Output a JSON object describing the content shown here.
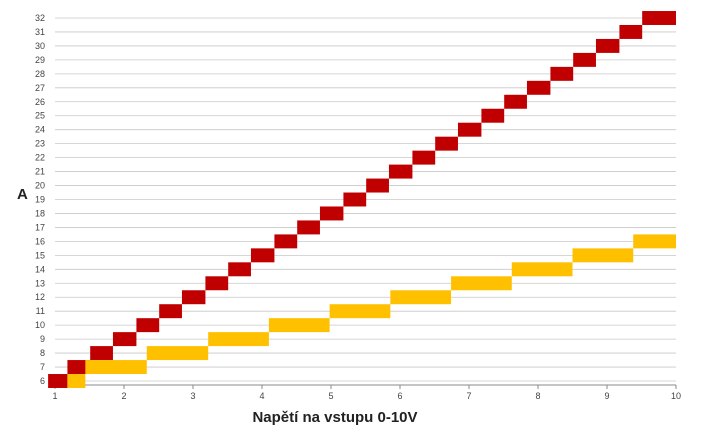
{
  "chart_data": {
    "type": "bar",
    "xlabel": "Napětí na vstupu 0-10V",
    "ylabel": "A",
    "xlim": [
      1,
      10
    ],
    "ylim": [
      6,
      32
    ],
    "xticks": [
      1,
      2,
      3,
      4,
      5,
      6,
      7,
      8,
      9,
      10
    ],
    "yticks": [
      6,
      7,
      8,
      9,
      10,
      11,
      12,
      13,
      14,
      15,
      16,
      17,
      18,
      19,
      20,
      21,
      22,
      23,
      24,
      25,
      26,
      27,
      28,
      29,
      30,
      31,
      32
    ],
    "grid": "horizontal",
    "legend": "none",
    "series": [
      {
        "color": "#c00000",
        "segments": [
          {
            "x_start": 0.9,
            "x_end": 1.18,
            "value": 6
          },
          {
            "x_start": 1.18,
            "x_end": 1.51,
            "value": 7
          },
          {
            "x_start": 1.51,
            "x_end": 1.84,
            "value": 8
          },
          {
            "x_start": 1.84,
            "x_end": 2.18,
            "value": 9
          },
          {
            "x_start": 2.18,
            "x_end": 2.51,
            "value": 10
          },
          {
            "x_start": 2.51,
            "x_end": 2.84,
            "value": 11
          },
          {
            "x_start": 2.84,
            "x_end": 3.18,
            "value": 12
          },
          {
            "x_start": 3.18,
            "x_end": 3.51,
            "value": 13
          },
          {
            "x_start": 3.51,
            "x_end": 3.84,
            "value": 14
          },
          {
            "x_start": 3.84,
            "x_end": 4.18,
            "value": 15
          },
          {
            "x_start": 4.18,
            "x_end": 4.51,
            "value": 16
          },
          {
            "x_start": 4.51,
            "x_end": 4.84,
            "value": 17
          },
          {
            "x_start": 4.84,
            "x_end": 5.18,
            "value": 18
          },
          {
            "x_start": 5.18,
            "x_end": 5.51,
            "value": 19
          },
          {
            "x_start": 5.51,
            "x_end": 5.84,
            "value": 20
          },
          {
            "x_start": 5.84,
            "x_end": 6.18,
            "value": 21
          },
          {
            "x_start": 6.18,
            "x_end": 6.51,
            "value": 22
          },
          {
            "x_start": 6.51,
            "x_end": 6.84,
            "value": 23
          },
          {
            "x_start": 6.84,
            "x_end": 7.18,
            "value": 24
          },
          {
            "x_start": 7.18,
            "x_end": 7.51,
            "value": 25
          },
          {
            "x_start": 7.51,
            "x_end": 7.84,
            "value": 26
          },
          {
            "x_start": 7.84,
            "x_end": 8.18,
            "value": 27
          },
          {
            "x_start": 8.18,
            "x_end": 8.51,
            "value": 28
          },
          {
            "x_start": 8.51,
            "x_end": 8.84,
            "value": 29
          },
          {
            "x_start": 8.84,
            "x_end": 9.18,
            "value": 30
          },
          {
            "x_start": 9.18,
            "x_end": 9.51,
            "value": 31
          },
          {
            "x_start": 9.51,
            "x_end": 10.0,
            "value": 32
          }
        ]
      },
      {
        "color": "#ffc000",
        "segments": [
          {
            "x_start": 1.18,
            "x_end": 1.44,
            "value": 6
          },
          {
            "x_start": 1.44,
            "x_end": 2.33,
            "value": 7
          },
          {
            "x_start": 2.33,
            "x_end": 3.22,
            "value": 8
          },
          {
            "x_start": 3.22,
            "x_end": 4.1,
            "value": 9
          },
          {
            "x_start": 4.1,
            "x_end": 4.98,
            "value": 10
          },
          {
            "x_start": 4.98,
            "x_end": 5.86,
            "value": 11
          },
          {
            "x_start": 5.86,
            "x_end": 6.74,
            "value": 12
          },
          {
            "x_start": 6.74,
            "x_end": 7.62,
            "value": 13
          },
          {
            "x_start": 7.62,
            "x_end": 8.5,
            "value": 14
          },
          {
            "x_start": 8.5,
            "x_end": 9.38,
            "value": 15
          },
          {
            "x_start": 9.38,
            "x_end": 10.0,
            "value": 16
          }
        ]
      }
    ]
  }
}
